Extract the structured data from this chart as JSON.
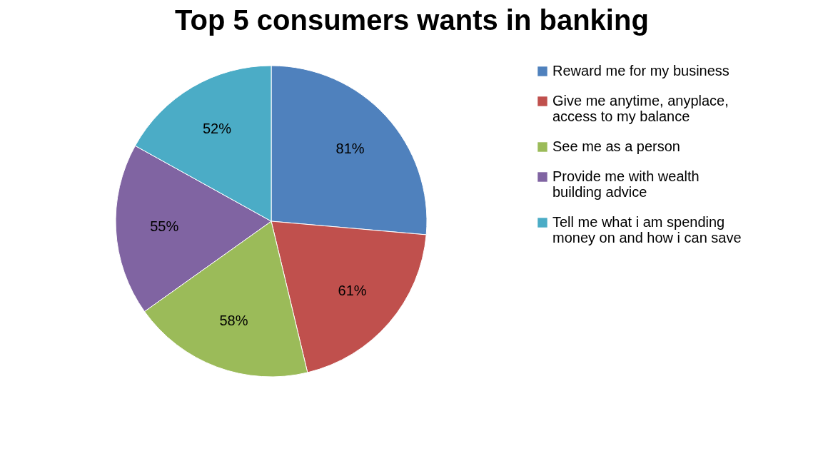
{
  "chart_data": {
    "type": "pie",
    "title": "Top 5 consumers wants in banking",
    "categories": [
      "Reward me for my business",
      "Give me anytime, anyplace, access to my balance",
      "See me as a person",
      "Provide me with wealth building advice",
      "Tell me what i am spending money on and how i can save"
    ],
    "values": [
      81,
      61,
      58,
      55,
      52
    ],
    "value_labels": [
      "81%",
      "61%",
      "58%",
      "55%",
      "52%"
    ],
    "colors": [
      "#4f81bd",
      "#c0504d",
      "#9bbb59",
      "#8064a2",
      "#4bacc6"
    ],
    "legend": "right"
  }
}
